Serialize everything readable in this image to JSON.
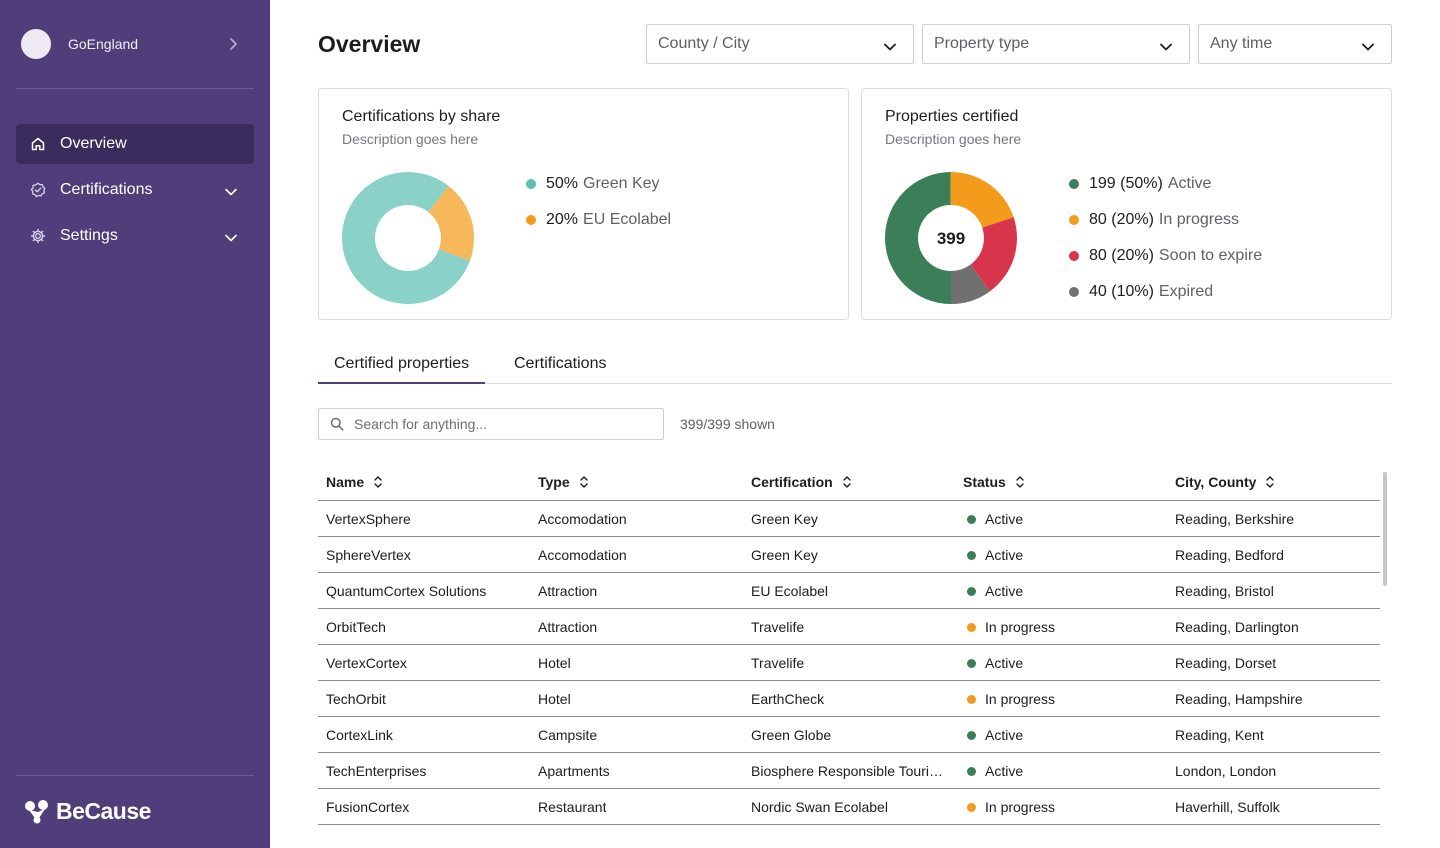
{
  "sidebar": {
    "org_name": "GoEngland",
    "items": [
      {
        "label": "Overview",
        "icon": "home-icon"
      },
      {
        "label": "Certifications",
        "icon": "badge-check-icon"
      },
      {
        "label": "Settings",
        "icon": "gear-icon"
      }
    ],
    "brand": "BeCause"
  },
  "header": {
    "title": "Overview",
    "filters": [
      {
        "value": "County / City"
      },
      {
        "value": "Property type"
      },
      {
        "value": "Any time"
      }
    ]
  },
  "cards": {
    "share": {
      "title": "Certifications by share",
      "description": "Description goes here",
      "legend": [
        {
          "value": "50%",
          "label": "Green Key",
          "color": "#5ebfb2"
        },
        {
          "value": "20%",
          "label": "EU Ecolabel",
          "color": "#f39c1b"
        }
      ]
    },
    "certified": {
      "title": "Properties certified",
      "description": "Description goes here",
      "total": "399",
      "legend": [
        {
          "value": "199 (50%)",
          "label": "Active",
          "color": "#3a7f57"
        },
        {
          "value": "80 (20%)",
          "label": "In progress",
          "color": "#f39c1b"
        },
        {
          "value": "80 (20%)",
          "label": "Soon to expire",
          "color": "#d8354c"
        },
        {
          "value": "40 (10%)",
          "label": "Expired",
          "color": "#707070"
        }
      ]
    }
  },
  "chart_data": [
    {
      "type": "pie",
      "title": "Certifications by share",
      "categories": [
        "Green Key",
        "EU Ecolabel"
      ],
      "values": [
        50,
        20
      ],
      "unit": "%",
      "colors": [
        "#8ad2c8",
        "#f7b85c"
      ],
      "legend": "right"
    },
    {
      "type": "pie",
      "title": "Properties certified",
      "categories": [
        "Active",
        "In progress",
        "Soon to expire",
        "Expired"
      ],
      "values": [
        199,
        80,
        80,
        40
      ],
      "colors": [
        "#3a7f57",
        "#f39c1b",
        "#d8354c",
        "#707070"
      ],
      "legend": "right"
    }
  ],
  "tabs": [
    {
      "label": "Certified properties",
      "active": true
    },
    {
      "label": "Certifications",
      "active": false
    }
  ],
  "search": {
    "placeholder": "Search for anything...",
    "count": "399/399 shown"
  },
  "table": {
    "columns": [
      "Name",
      "Type",
      "Certification",
      "Status",
      "City, County"
    ],
    "status_colors": {
      "Active": "#3a7f57",
      "In progress": "#f39c1b"
    },
    "rows": [
      {
        "name": "VertexSphere",
        "type": "Accomodation",
        "certification": "Green Key",
        "status": "Active",
        "city": "Reading, Berkshire"
      },
      {
        "name": "SphereVertex",
        "type": "Accomodation",
        "certification": "Green Key",
        "status": "Active",
        "city": "Reading, Bedford"
      },
      {
        "name": "QuantumCortex Solutions",
        "type": "Attraction",
        "certification": "EU Ecolabel",
        "status": "Active",
        "city": "Reading, Bristol"
      },
      {
        "name": "OrbitTech",
        "type": "Attraction",
        "certification": "Travelife",
        "status": "In progress",
        "city": "Reading, Darlington"
      },
      {
        "name": "VertexCortex",
        "type": "Hotel",
        "certification": "Travelife",
        "status": "Active",
        "city": "Reading, Dorset"
      },
      {
        "name": "TechOrbit",
        "type": "Hotel",
        "certification": "EarthCheck",
        "status": "In progress",
        "city": "Reading, Hampshire"
      },
      {
        "name": "CortexLink",
        "type": "Campsite",
        "certification": "Green Globe",
        "status": "Active",
        "city": "Reading, Kent"
      },
      {
        "name": "TechEnterprises",
        "type": "Apartments",
        "certification": "Biosphere Responsible Tourism",
        "status": "Active",
        "city": "London, London"
      },
      {
        "name": "FusionCortex",
        "type": "Restaurant",
        "certification": "Nordic Swan Ecolabel",
        "status": "In progress",
        "city": "Haverhill, Suffolk"
      }
    ]
  }
}
